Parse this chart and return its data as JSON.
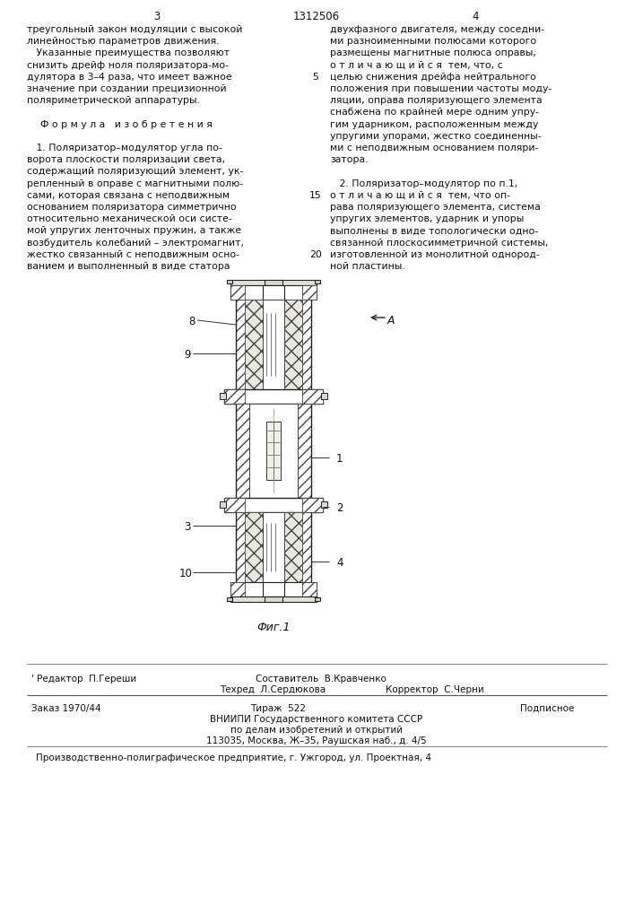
{
  "bg_color": "#ffffff",
  "page_width": 7.07,
  "page_height": 10.0,
  "header": {
    "left_num": "3",
    "center_num": "1312506",
    "right_num": "4"
  },
  "left_col_lines": [
    "треугольный закон модуляции с высокой",
    "линейностью параметров движения.",
    "   Указанные преимущества позволяют",
    "снизить дрейф ноля поляризатора-мо-",
    "дулятора в 3–4 раза, что имеет важное",
    "значение при создании прецизионной",
    "поляриметрической аппаратуры.",
    "",
    "Ф о р м у л а   и з о б р е т е н и я",
    "",
    "   1. Поляризатор–модулятор угла по-",
    "ворота плоскости поляризации света,",
    "содержащий поляризующий элемент, ук-",
    "репленный в оправе с магнитными полю-",
    "сами, которая связана с неподвижным",
    "основанием поляризатора симметрично",
    "относительно механической оси систе-",
    "мой упругих ленточных пружин, а также",
    "возбудитель колебаний – электромагнит,",
    "жестко связанный с неподвижным осно-",
    "ванием и выполненный в виде статора"
  ],
  "right_col_lines": [
    "двухфазного двигателя, между соседни-",
    "ми разноименными полюсами которого",
    "размещены магнитные полюса оправы,",
    "о т л и ч а ю щ и й с я  тем, что, с",
    "целью снижения дрейфа нейтрального",
    "положения при повышении частоты моду-",
    "ляции, оправа поляризующего элемента",
    "снабжена по крайней мере одним упру-",
    "гим ударником, расположенным между",
    "упругими упорами, жестко соединенны-",
    "ми с неподвижным основанием поляри-",
    "затора.",
    "",
    "   2. Поляризатор–модулятор по п.1,",
    "о т л и ч а ю щ и й с я  тем, что оп-",
    "рава поляризующего элемента, система",
    "упругих элементов, ударник и упоры",
    "выполнены в виде топологически одно-",
    "связанной плоскосимметричной системы,",
    "изготовленной из монолитной однород-",
    "ной пластины."
  ],
  "line_numbers": {
    "4": "5",
    "9": "10",
    "14": "15",
    "19": "20"
  },
  "fig_label": "Фиг.1",
  "footer_line1_left": "' Редактор  П.Гереши",
  "footer_line1_center": "Составитель  В.Кравченко",
  "footer_line2_center_left": "Техред  Л.Сердюкова",
  "footer_line2_center_right": "Корректор  С.Черни",
  "footer_zakas": "Заказ 1970/44",
  "footer_tirazh": "Тираж  522",
  "footer_podpisnoe": "Подписное",
  "footer_vniipи": "ВНИИПИ Государственного комитета СССР",
  "footer_po_delam": "по делам изобретений и открытий",
  "footer_address": "113035, Москва, Ж–35, Раушская наб., д. 4/5",
  "footer_proizvod": "Производственно-полиграфическое предприятие, г. Ужгород, ул. Проектная, 4"
}
